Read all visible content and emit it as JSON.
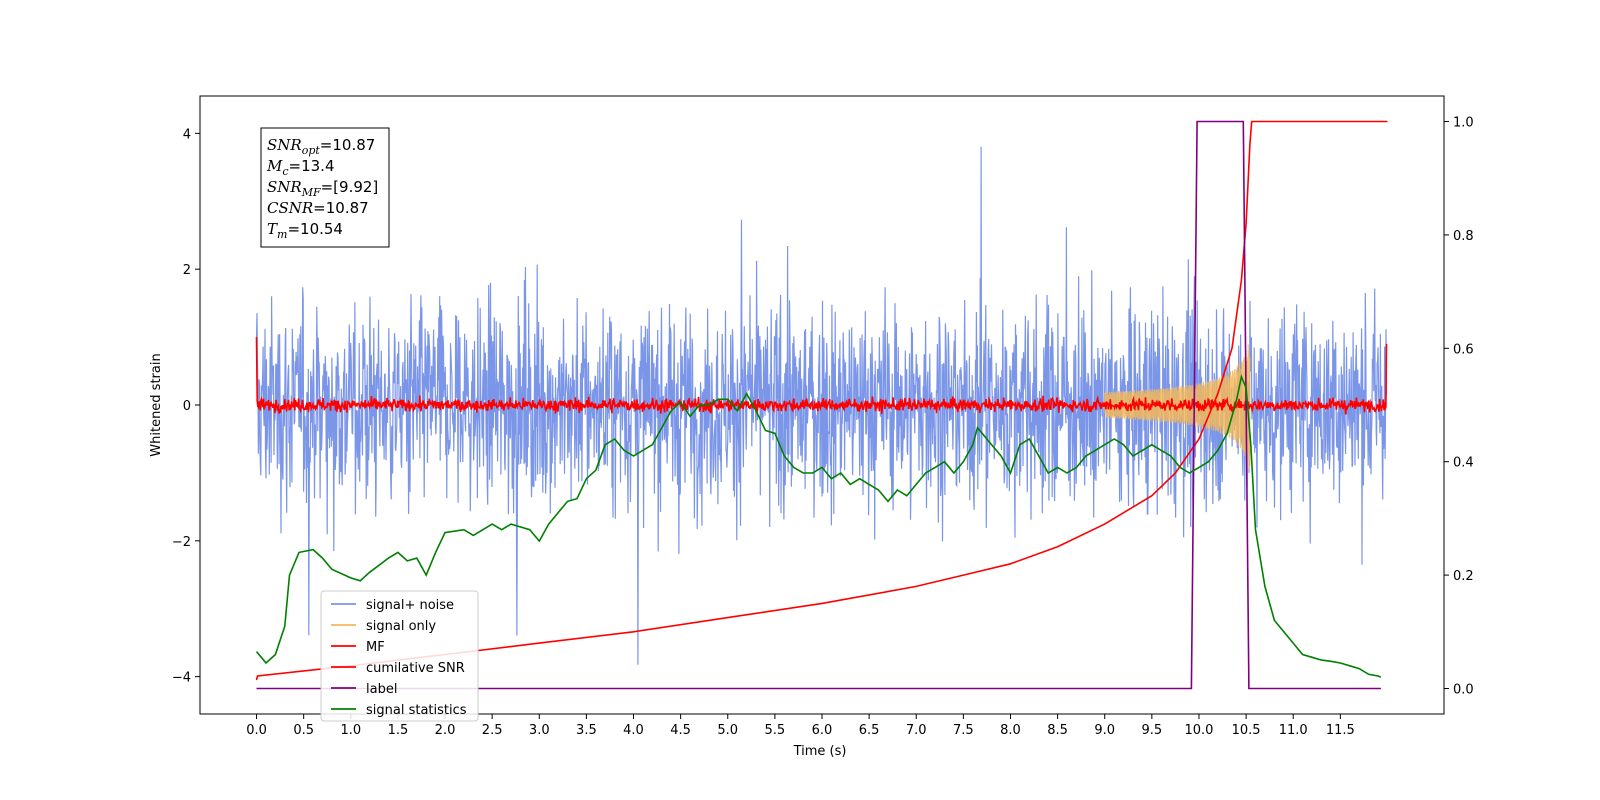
{
  "chart_data": {
    "type": "line",
    "xlabel": "Time (s)",
    "ylabel": "Whitened strain",
    "xlim": [
      -0.6,
      12.6
    ],
    "ylim": [
      -4.55,
      4.55
    ],
    "y2lim": [
      -0.045,
      1.045
    ],
    "x_ticks": [
      0.0,
      0.5,
      1.0,
      1.5,
      2.0,
      2.5,
      3.0,
      3.5,
      4.0,
      4.5,
      5.0,
      5.5,
      6.0,
      6.5,
      7.0,
      7.5,
      8.0,
      8.5,
      9.0,
      9.5,
      10.0,
      10.5,
      11.0,
      11.5
    ],
    "x_tick_labels": [
      "0.0",
      "0.5",
      "1.0",
      "1.5",
      "2.0",
      "2.5",
      "3.0",
      "3.5",
      "4.0",
      "4.5",
      "5.0",
      "5.5",
      "6.0",
      "6.5",
      "7.0",
      "7.5",
      "8.0",
      "8.5",
      "9.0",
      "9.5",
      "10.0",
      "10.5",
      "11.0",
      "11.5"
    ],
    "y_ticks": [
      -4,
      -2,
      0,
      2,
      4
    ],
    "y_tick_labels": [
      "−4",
      "−2",
      "0",
      "2",
      "4"
    ],
    "y2_ticks": [
      0.0,
      0.2,
      0.4,
      0.6,
      0.8,
      1.0
    ],
    "y2_tick_labels": [
      "0.0",
      "0.2",
      "0.4",
      "0.6",
      "0.8",
      "1.0"
    ],
    "grid": false,
    "legend_position": "lower-left",
    "annotation": {
      "lines": [
        {
          "sym": "SNR",
          "sub": "opt",
          "rest": "=10.87"
        },
        {
          "sym": "M",
          "sub": "c",
          "rest": "=13.4"
        },
        {
          "sym": "SNR",
          "sub": "MF",
          "rest": "=[9.92]"
        },
        {
          "sym": "CSNR",
          "sub": "",
          "rest": "=10.87"
        },
        {
          "sym": "T",
          "sub": "m",
          "rest": "=10.54"
        }
      ]
    },
    "series": [
      {
        "name": "signal+ noise",
        "color": "#7b96e8",
        "axis": "left",
        "kind": "noise",
        "x_range": [
          0.0,
          11.99
        ],
        "typical_amplitude": 1.4,
        "peak_max": 4.15,
        "peak_min": -4.1
      },
      {
        "name": "signal only",
        "color": "#f5b85b",
        "axis": "left",
        "kind": "chirp",
        "x_range": [
          9.0,
          10.54
        ],
        "peak_amplitude": 1.0
      },
      {
        "name": "MF",
        "color": "#ff0000",
        "axis": "left",
        "kind": "noise",
        "x_range": [
          0.0,
          11.99
        ],
        "typical_amplitude": 0.12,
        "start_value": 1.0,
        "end_value": 0.9
      },
      {
        "name": "cumilative SNR",
        "color": "#ff0000",
        "axis": "right",
        "x": [
          0.0,
          0.01,
          1.0,
          2.0,
          3.0,
          4.0,
          5.0,
          6.0,
          7.0,
          7.5,
          8.0,
          8.5,
          9.0,
          9.5,
          9.75,
          10.0,
          10.2,
          10.35,
          10.45,
          10.5,
          10.54,
          10.56,
          12.0
        ],
        "y": [
          0.015,
          0.022,
          0.04,
          0.06,
          0.08,
          0.1,
          0.125,
          0.15,
          0.18,
          0.2,
          0.22,
          0.25,
          0.29,
          0.34,
          0.38,
          0.44,
          0.52,
          0.6,
          0.72,
          0.82,
          0.96,
          1.0,
          1.0
        ]
      },
      {
        "name": "label",
        "color": "#800080",
        "axis": "right",
        "x": [
          0.0,
          9.92,
          9.98,
          10.47,
          10.53,
          11.93
        ],
        "y": [
          0.0,
          0.0,
          1.0,
          1.0,
          0.0,
          0.0
        ]
      },
      {
        "name": "signal statistics",
        "color": "#008000",
        "axis": "right",
        "x": [
          0.0,
          0.05,
          0.1,
          0.2,
          0.3,
          0.35,
          0.45,
          0.6,
          0.7,
          0.8,
          1.0,
          1.1,
          1.2,
          1.4,
          1.5,
          1.6,
          1.7,
          1.8,
          1.9,
          2.0,
          2.2,
          2.3,
          2.5,
          2.6,
          2.7,
          2.9,
          3.0,
          3.1,
          3.2,
          3.3,
          3.4,
          3.5,
          3.6,
          3.7,
          3.8,
          3.9,
          4.0,
          4.2,
          4.4,
          4.5,
          4.6,
          4.7,
          4.8,
          4.9,
          5.0,
          5.1,
          5.2,
          5.3,
          5.4,
          5.5,
          5.6,
          5.7,
          5.8,
          5.9,
          6.0,
          6.1,
          6.2,
          6.3,
          6.4,
          6.5,
          6.6,
          6.7,
          6.8,
          6.9,
          7.0,
          7.1,
          7.2,
          7.3,
          7.4,
          7.5,
          7.6,
          7.65,
          7.8,
          7.9,
          8.0,
          8.1,
          8.2,
          8.3,
          8.4,
          8.5,
          8.6,
          8.7,
          8.8,
          8.9,
          9.0,
          9.1,
          9.2,
          9.3,
          9.4,
          9.5,
          9.6,
          9.7,
          9.8,
          9.9,
          10.0,
          10.1,
          10.2,
          10.3,
          10.4,
          10.45,
          10.5,
          10.55,
          10.6,
          10.7,
          10.8,
          10.9,
          11.0,
          11.1,
          11.2,
          11.3,
          11.4,
          11.5,
          11.6,
          11.7,
          11.8,
          11.9,
          11.93
        ],
        "y": [
          0.065,
          0.055,
          0.045,
          0.06,
          0.11,
          0.2,
          0.24,
          0.245,
          0.23,
          0.21,
          0.195,
          0.19,
          0.205,
          0.23,
          0.24,
          0.225,
          0.23,
          0.2,
          0.24,
          0.275,
          0.28,
          0.27,
          0.29,
          0.28,
          0.29,
          0.28,
          0.26,
          0.29,
          0.31,
          0.33,
          0.335,
          0.37,
          0.385,
          0.43,
          0.44,
          0.42,
          0.41,
          0.43,
          0.49,
          0.505,
          0.48,
          0.5,
          0.5,
          0.51,
          0.51,
          0.49,
          0.52,
          0.49,
          0.455,
          0.45,
          0.41,
          0.39,
          0.38,
          0.38,
          0.39,
          0.37,
          0.38,
          0.36,
          0.37,
          0.36,
          0.35,
          0.33,
          0.35,
          0.34,
          0.36,
          0.38,
          0.39,
          0.4,
          0.38,
          0.4,
          0.43,
          0.46,
          0.43,
          0.41,
          0.38,
          0.43,
          0.44,
          0.41,
          0.38,
          0.39,
          0.38,
          0.39,
          0.41,
          0.42,
          0.43,
          0.44,
          0.43,
          0.41,
          0.42,
          0.43,
          0.42,
          0.41,
          0.39,
          0.38,
          0.39,
          0.4,
          0.42,
          0.45,
          0.51,
          0.55,
          0.53,
          0.43,
          0.28,
          0.18,
          0.12,
          0.1,
          0.08,
          0.06,
          0.055,
          0.05,
          0.048,
          0.045,
          0.04,
          0.035,
          0.025,
          0.022,
          0.02
        ]
      }
    ]
  }
}
